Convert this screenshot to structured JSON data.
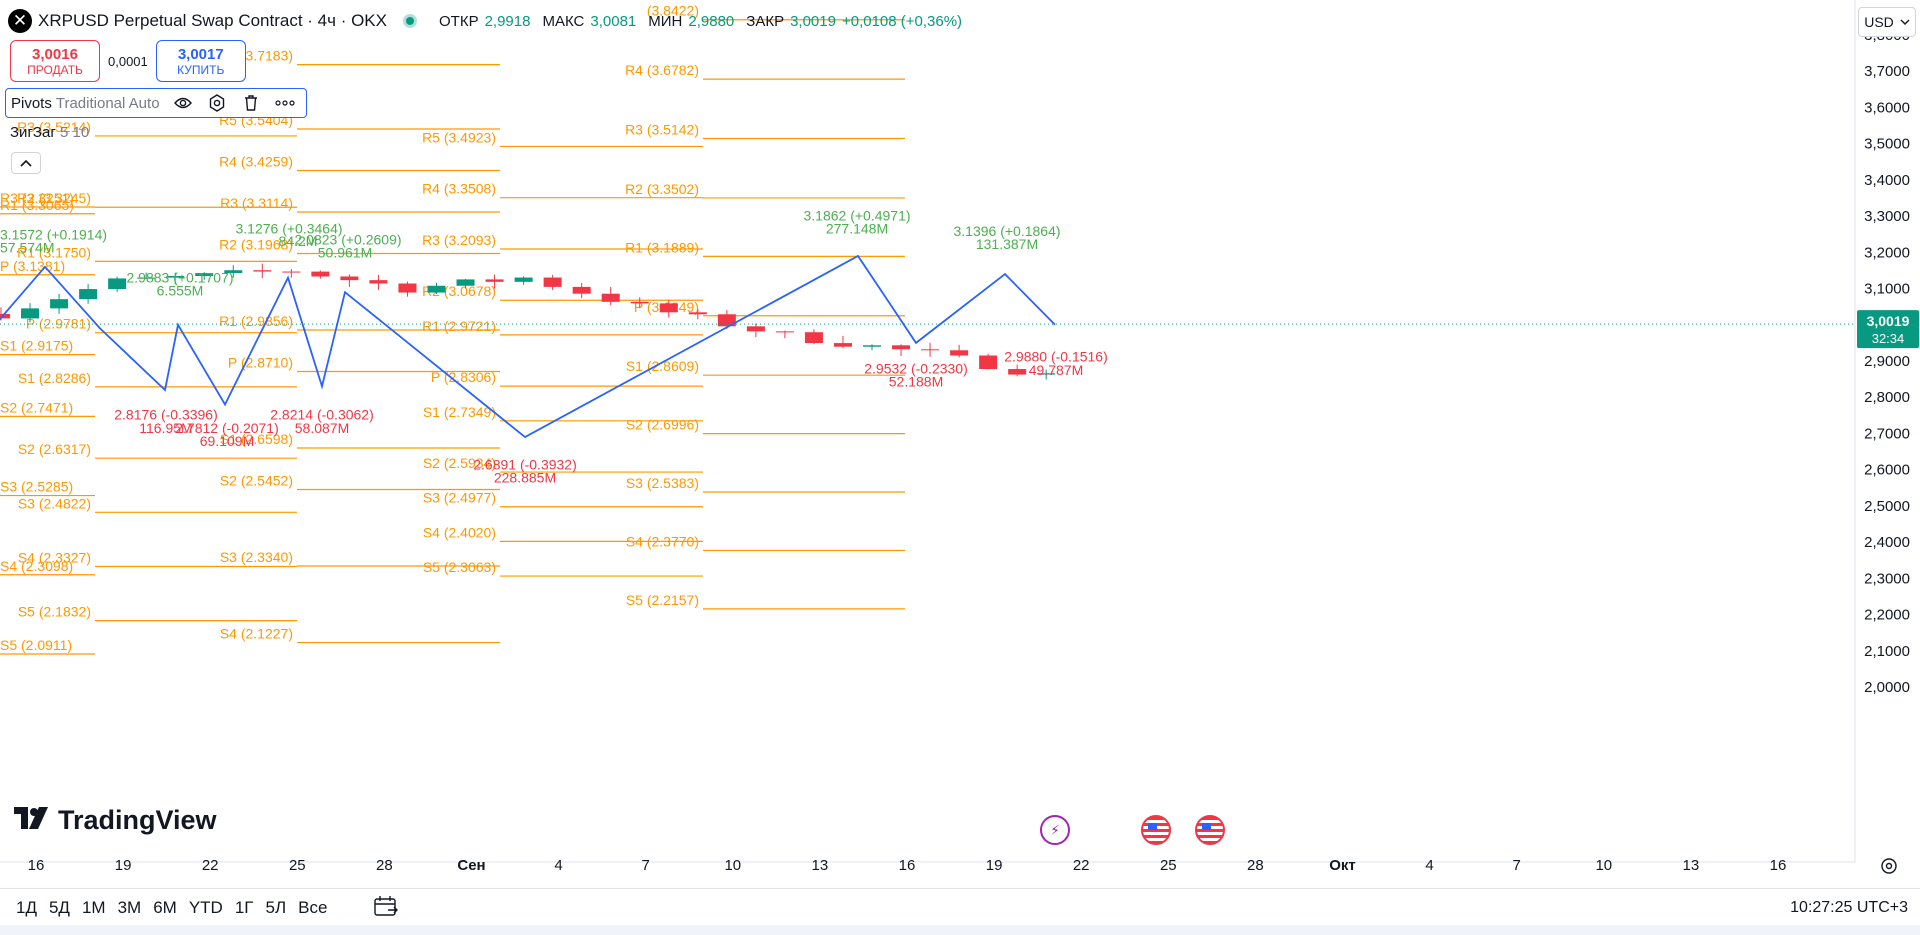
{
  "header": {
    "title": "XRPUSD Perpetual Swap Contract · 4ч · OKX",
    "ohlc": [
      {
        "label": "ОТКР",
        "value": "2,9918"
      },
      {
        "label": "МАКС",
        "value": "3,0081"
      },
      {
        "label": "МИН",
        "value": "2,9880"
      },
      {
        "label": "ЗАКР",
        "value": "3,0019"
      }
    ],
    "change": "+0,0108 (+0,36%)"
  },
  "trade": {
    "sell_price": "3,0016",
    "sell_label": "ПРОДАТЬ",
    "spread": "0,0001",
    "buy_price": "3,0017",
    "buy_label": "КУПИТЬ"
  },
  "indicators": {
    "pivots_name": "Pivots",
    "pivots_params": "Traditional Auto",
    "zigzag_name": "ЗигЗаг",
    "zigzag_params": "5 10"
  },
  "currency": "USD",
  "logo_text": "TradingView",
  "ranges": [
    "1Д",
    "5Д",
    "1М",
    "3М",
    "6М",
    "YTD",
    "1Г",
    "5Л",
    "Все"
  ],
  "clock": "10:27:25 UTC+3",
  "icons": {
    "symbol": "x-logo-icon",
    "eye": "eye-icon",
    "settings": "gear-icon",
    "trash": "trash-icon",
    "more": "more-icon",
    "collapse": "chevron-up-icon",
    "calendar": "calendar-range-icon",
    "bolt": "lightning-icon",
    "flag": "us-flag-icon",
    "chart_settings": "chart-settings-icon"
  },
  "colors": {
    "pivot": "#ff9800",
    "up": "#089981",
    "down": "#f23645",
    "zigzag": "#2962ff",
    "zz_up_label": "#4caf50",
    "zz_down_label": "#f23645"
  },
  "chart_data": {
    "type": "candlestick",
    "x_tick_labels": [
      "16",
      "19",
      "22",
      "25",
      "28",
      "Сен",
      "4",
      "7",
      "10",
      "13",
      "16",
      "19",
      "22",
      "25",
      "28",
      "Окт",
      "4",
      "7",
      "10",
      "13",
      "16"
    ],
    "y_tick_labels": [
      "3,8000",
      "3,7000",
      "3,6000",
      "3,5000",
      "3,4000",
      "3,3000",
      "3,2000",
      "3,1000",
      "3,0000",
      "2,9000",
      "2,8000",
      "2,7000",
      "2,6000",
      "2,5000",
      "2,4000",
      "2,3000",
      "2,2000",
      "2,1000",
      "2,0000"
    ],
    "ylim": [
      1.98,
      3.82
    ],
    "last_price": {
      "value": 3.0019,
      "label": "3,0019",
      "countdown": "32:34"
    },
    "pivot_labels": [
      "R3 (3.3251)",
      "R1 (3.3065)",
      "P (3.1381)",
      "S1 (2.9175)",
      "S2 (2.7471)",
      "S3 (2.5285)",
      "S4 (2.3098)",
      "S5 (2.0911)",
      "(3.7183)",
      "R3 (3.5214)",
      "R2 (3.3245)",
      "R1 (3.1750)",
      "P (2.9781)",
      "S1 (2.8286)",
      "S2 (2.6317)",
      "S3 (2.4822)",
      "S4 (2.3327)",
      "S5 (2.1832)",
      "R5 (3.5404)",
      "R4 (3.4259)",
      "R3 (3.3114)",
      "R2 (3.1968)",
      "R1 (2.9856)",
      "P (2.8710)",
      "S1 (2.6598)",
      "S2 (2.5452)",
      "S3 (2.3340)",
      "S4 (2.1227)",
      "R5 (3.4923)",
      "R4 (3.3508)",
      "R3 (3.2093)",
      "R2 (3.0678)",
      "R1 (2.9721)",
      "P (2.8306)",
      "S1 (2.7349)",
      "S2 (2.5934)",
      "S3 (2.4977)",
      "S4 (2.4020)",
      "S5 (2.3063)",
      "R4 (3.6782)",
      "R3 (3.5142)",
      "R2 (3.3502)",
      "R1 (3.1889)",
      "P (3.0249)",
      "S1 (2.8609)",
      "S2 (2.6996)",
      "S3 (2.5383)",
      "S4 (2.3770)",
      "S5 (2.2157)",
      "(3.8422)"
    ],
    "zigzag_labels": [
      "3.1572 (+0.1914)",
      "57.574M",
      "2.9883 (+0.1707)",
      "6.555M",
      "3.1276 (+0.3464)",
      "84.2M",
      "2.0823 (+0.2609)",
      "50.961M",
      "2.8176 (-0.3396)",
      "116.95M",
      "2.7812 (-0.2071)",
      "69.109M",
      "2.8214 (-0.3062)",
      "58.087M",
      "2.6891 (-0.3932)",
      "228.885M",
      "3.1862 (+0.4971)",
      "277.148M",
      "3.1396 (+0.1864)",
      "131.387M",
      "2.9532 (-0.2330)",
      "52.188M",
      "2.9880 (-0.1516)",
      "49.787M"
    ]
  }
}
